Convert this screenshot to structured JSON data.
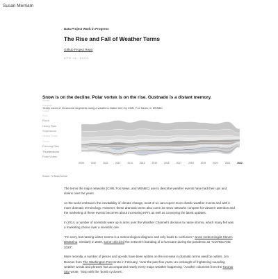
{
  "site": {
    "name": "Susan Merriam"
  },
  "header": {
    "kicker": "Data Project Work in Progress",
    "title": "The Rise and Fall of Weather Terms",
    "repo_link": "Github Project Repo",
    "date": "APR 11, 2022"
  },
  "headline": "Snow is on the decline. Polar vortex is on the rise. Gustnado is a distant memory.",
  "subhead": "Yearly count of 15-second segments using a weather-related term by CNN, Fox News, or MSNBC",
  "chart_data": {
    "type": "area",
    "x": [
      "2009",
      "2010",
      "2011",
      "2012",
      "2013",
      "2014",
      "2015",
      "2016",
      "2017",
      "2018",
      "2019",
      "2020",
      "2021",
      "2022"
    ],
    "series": [
      {
        "name": "Storm",
        "color": "#bdbdbd",
        "values": [
          52,
          50,
          58,
          62,
          55,
          60,
          56,
          52,
          50,
          54,
          48,
          46,
          52,
          30
        ]
      },
      {
        "name": "Weather",
        "color": "#c8c8c8",
        "values": [
          40,
          38,
          42,
          46,
          44,
          45,
          43,
          40,
          42,
          44,
          41,
          40,
          42,
          25
        ]
      },
      {
        "name": "Snow",
        "color": "#d6d6d6",
        "values": [
          30,
          26,
          28,
          24,
          26,
          28,
          22,
          20,
          18,
          16,
          14,
          12,
          13,
          8
        ]
      },
      {
        "name": "Rain",
        "color": "#e3e3e3",
        "values": [
          18,
          17,
          19,
          20,
          19,
          20,
          18,
          18,
          19,
          18,
          17,
          17,
          18,
          10
        ]
      },
      {
        "name": "Flood",
        "color": "#9a9a9a",
        "values": [
          10,
          12,
          16,
          22,
          14,
          12,
          16,
          18,
          24,
          20,
          18,
          16,
          20,
          12
        ]
      },
      {
        "name": "Heavy Rain",
        "color": "#aaa39a",
        "values": [
          9,
          10,
          11,
          13,
          11,
          12,
          13,
          14,
          16,
          15,
          14,
          14,
          16,
          9
        ]
      },
      {
        "name": "Superstorm",
        "color": "#a8b4c1",
        "values": [
          1,
          1,
          2,
          20,
          6,
          3,
          2,
          1,
          1,
          1,
          1,
          1,
          1,
          0
        ]
      },
      {
        "name": "Heavy Snow",
        "color": "#c0c7cf",
        "values": [
          8,
          10,
          9,
          6,
          8,
          9,
          7,
          5,
          6,
          5,
          4,
          4,
          4,
          2
        ]
      },
      {
        "name": "Storm",
        "color": "#d3d7dc",
        "values": [
          12,
          11,
          13,
          14,
          12,
          13,
          12,
          11,
          11,
          12,
          11,
          10,
          11,
          6
        ]
      },
      {
        "name": "Freezing Rain",
        "color": "#c9b9aa",
        "values": [
          5,
          6,
          5,
          4,
          6,
          7,
          5,
          4,
          5,
          4,
          4,
          5,
          6,
          3
        ]
      },
      {
        "name": "Thunderstorm",
        "color": "#7f7f7f",
        "values": [
          6,
          6,
          7,
          7,
          6,
          7,
          7,
          6,
          7,
          7,
          6,
          6,
          7,
          4
        ]
      },
      {
        "name": "Polar Vortex",
        "color": "#b7c6d6",
        "values": [
          0,
          0,
          0,
          0,
          1,
          20,
          10,
          6,
          8,
          12,
          16,
          8,
          11,
          6
        ]
      },
      {
        "name": "",
        "color": "#adadad",
        "values": [
          2,
          4,
          6,
          5,
          6,
          8,
          10,
          9,
          11,
          13,
          14,
          16,
          18,
          10
        ]
      },
      {
        "name": "",
        "color": "#cecece",
        "values": [
          3,
          3,
          4,
          4,
          4,
          5,
          5,
          5,
          6,
          6,
          7,
          7,
          8,
          4
        ]
      }
    ],
    "legend": [
      {
        "label": "Storm",
        "color": "#c4c4c4"
      },
      {
        "label": "Weather",
        "color": "#c9c9c9"
      },
      {
        "label": "Snow",
        "color": "#cfcfcf"
      },
      {
        "label": "Rain",
        "color": "#d6d6d6"
      },
      {
        "label": "Flood",
        "color": "#8a8a8a"
      },
      {
        "label": "Heavy Rain",
        "color": "#8a8a8a"
      },
      {
        "label": "Superstorm",
        "color": "#8f8f8f"
      },
      {
        "label": "Heavy Snow",
        "color": "#c8c8c8"
      },
      {
        "label": "Storm",
        "color": "#d2d2d2"
      },
      {
        "label": "Freezing Rain",
        "color": "#8a8a8a"
      },
      {
        "label": "Thunderstorm",
        "color": "#777777"
      },
      {
        "label": "Polar Vortex",
        "color": "#8a8a8a"
      },
      {
        "label": "",
        "color": "#c8c8c8"
      },
      {
        "label": "",
        "color": "#d8d8d8"
      }
    ],
    "ylim": [
      0,
      300
    ],
    "legend_position": "left",
    "grid": false
  },
  "source": "Source: TV News Archive",
  "article": [
    {
      "parts": [
        {
          "t": "The terms the major networks (CNN, Fox News, and MSNBC) use to describe weather events have had their ups and downs over the years."
        }
      ]
    },
    {
      "parts": [
        {
          "t": "As the world embraces the inevitability of climate change, most of us can expect more drastic weather events and with it more dramatic terminology. However, these dramatic terms also come as news networks compete for viewers' attention and the marketing of these events becomes about increasing KPI's as well as conveying the latest updates."
        }
      ]
    },
    {
      "parts": [
        {
          "t": "In 2014, a number of scientists were up in arms over the Weather Channel's decision to name storms, which many felt was a marketing choice over a scientific one."
        }
      ]
    },
    {
      "parts": [
        {
          "t": "\"I'm sorry, but naming winter storms is a meteorological disgrace and only leads to confusion,\" "
        },
        {
          "t": "wrote meteorologist Steven DiMartino",
          "link": true
        },
        {
          "t": ". Similarly in 2020, "
        },
        {
          "t": "some criticized",
          "link": true
        },
        {
          "t": " the network's branding of a hurricane during the pandemic as \"COVIDCANE 2020\"."
        }
      ]
    },
    {
      "parts": [
        {
          "t": "More recently, a number of pieces and op-eds have been written on the increase in dramatic terms used by outlets. Jim Duncan from "
        },
        {
          "t": "The Washington Post",
          "link": true
        },
        {
          "t": " wrote in February, \"over the past few years, an onslaught of frightening-sounding weather words and phrases has accompanied nearly every major weather happening.\" Another columnist from the "
        },
        {
          "t": "Toronto Star",
          "link": true
        },
        {
          "t": " wrote, \"Stop with the 'bomb cyclones'."
        }
      ]
    }
  ]
}
